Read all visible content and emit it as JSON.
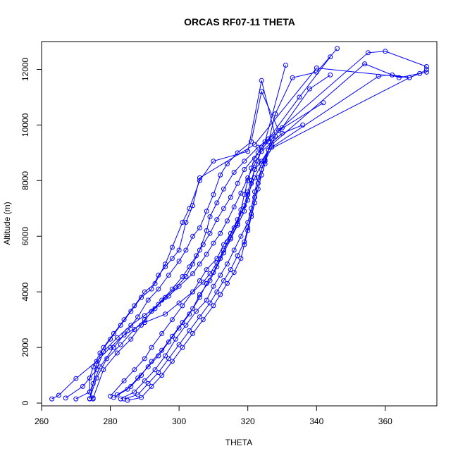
{
  "chart_data": {
    "type": "scatter",
    "title": "ORCAS RF07-11 THETA",
    "xlabel": "THETA",
    "ylabel": "Altitude (m)",
    "xlim": [
      260,
      375
    ],
    "ylim": [
      -100,
      13000
    ],
    "xticks": [
      260,
      280,
      300,
      320,
      340,
      360
    ],
    "yticks": [
      0,
      2000,
      4000,
      6000,
      8000,
      10000,
      12000
    ],
    "grid": false,
    "style": "points joined by lines, open circles",
    "color": "#0000ff",
    "series": [
      {
        "points": [
          [
            263,
            150
          ],
          [
            265,
            280
          ],
          [
            270,
            880
          ],
          [
            276,
            1500
          ],
          [
            280,
            2000
          ],
          [
            284,
            2450
          ],
          [
            290,
            2900
          ],
          [
            296,
            3200
          ],
          [
            300,
            3600
          ],
          [
            304,
            4000
          ],
          [
            307,
            4350
          ],
          [
            309,
            4650
          ],
          [
            311,
            5050
          ],
          [
            313,
            5500
          ],
          [
            315,
            5950
          ],
          [
            317,
            6450
          ],
          [
            318,
            6950
          ],
          [
            319,
            7500
          ],
          [
            320,
            8000
          ],
          [
            321,
            8450
          ],
          [
            322,
            8800
          ],
          [
            325,
            9400
          ],
          [
            331,
            12150
          ]
        ]
      },
      {
        "points": [
          [
            267,
            180
          ],
          [
            272,
            600
          ],
          [
            276,
            1200
          ],
          [
            278,
            1850
          ],
          [
            282,
            2350
          ],
          [
            286,
            2800
          ],
          [
            290,
            3150
          ],
          [
            294,
            3550
          ],
          [
            297,
            3850
          ],
          [
            300,
            4200
          ],
          [
            304,
            4650
          ],
          [
            306,
            5000
          ],
          [
            308,
            5350
          ],
          [
            310,
            5750
          ],
          [
            312,
            6100
          ],
          [
            314,
            6550
          ],
          [
            316,
            7050
          ],
          [
            318,
            7550
          ],
          [
            320,
            8100
          ],
          [
            322,
            8600
          ],
          [
            324,
            9050
          ],
          [
            330,
            9700
          ],
          [
            336,
            10000
          ]
        ]
      },
      {
        "points": [
          [
            270,
            150
          ],
          [
            274,
            400
          ],
          [
            277,
            1300
          ],
          [
            281,
            2000
          ],
          [
            285,
            2600
          ],
          [
            288,
            3100
          ],
          [
            291,
            3700
          ],
          [
            294,
            4100
          ],
          [
            297,
            4600
          ],
          [
            300,
            5100
          ],
          [
            302,
            5500
          ],
          [
            304,
            6000
          ],
          [
            306,
            6300
          ],
          [
            308,
            6900
          ],
          [
            310,
            7500
          ],
          [
            312,
            8200
          ],
          [
            314,
            8600
          ],
          [
            317,
            9000
          ],
          [
            321,
            9400
          ],
          [
            324,
            11200
          ],
          [
            329,
            9800
          ],
          [
            342,
            10800
          ]
        ]
      },
      {
        "points": [
          [
            274,
            160
          ],
          [
            276,
            900
          ],
          [
            279,
            1600
          ],
          [
            283,
            2100
          ],
          [
            287,
            2650
          ],
          [
            290,
            3000
          ],
          [
            293,
            3400
          ],
          [
            296,
            3800
          ],
          [
            299,
            4150
          ],
          [
            302,
            4550
          ],
          [
            304,
            5000
          ],
          [
            306,
            5500
          ],
          [
            308,
            6200
          ],
          [
            309,
            6700
          ],
          [
            311,
            7200
          ],
          [
            313,
            7700
          ],
          [
            316,
            8300
          ],
          [
            319,
            8700
          ],
          [
            323,
            9200
          ],
          [
            326,
            9500
          ],
          [
            335,
            11000
          ],
          [
            344,
            12450
          ]
        ]
      },
      {
        "points": [
          [
            275,
            180
          ],
          [
            278,
            1200
          ],
          [
            282,
            1800
          ],
          [
            286,
            2300
          ],
          [
            289,
            2800
          ],
          [
            292,
            3300
          ],
          [
            295,
            3700
          ],
          [
            298,
            4100
          ],
          [
            301,
            4550
          ],
          [
            303,
            4900
          ],
          [
            305,
            5300
          ],
          [
            307,
            5700
          ],
          [
            309,
            6100
          ],
          [
            311,
            6600
          ],
          [
            313,
            7000
          ],
          [
            315,
            7400
          ],
          [
            317,
            7900
          ],
          [
            319,
            8400
          ],
          [
            323,
            9000
          ],
          [
            326,
            9400
          ],
          [
            328,
            10400
          ],
          [
            333,
            11700
          ],
          [
            340,
            11900
          ],
          [
            346,
            12750
          ]
        ]
      },
      {
        "points": [
          [
            280,
            250
          ],
          [
            284,
            800
          ],
          [
            287,
            1200
          ],
          [
            290,
            1600
          ],
          [
            292,
            2000
          ],
          [
            295,
            2500
          ],
          [
            298,
            3000
          ],
          [
            301,
            3500
          ],
          [
            304,
            4000
          ],
          [
            306,
            4400
          ],
          [
            308,
            4800
          ],
          [
            311,
            5200
          ],
          [
            313,
            5700
          ],
          [
            315,
            6100
          ],
          [
            317,
            6600
          ],
          [
            319,
            7100
          ],
          [
            320,
            7600
          ],
          [
            321,
            8000
          ],
          [
            322,
            8400
          ],
          [
            323,
            8700
          ],
          [
            324,
            9200
          ],
          [
            326,
            9500
          ],
          [
            355,
            12600
          ],
          [
            360,
            12650
          ],
          [
            372,
            12100
          ]
        ]
      },
      {
        "points": [
          [
            281,
            200
          ],
          [
            285,
            500
          ],
          [
            288,
            900
          ],
          [
            291,
            1300
          ],
          [
            294,
            1700
          ],
          [
            297,
            2200
          ],
          [
            300,
            2700
          ],
          [
            303,
            3200
          ],
          [
            306,
            3800
          ],
          [
            308,
            4300
          ],
          [
            310,
            4700
          ],
          [
            312,
            5200
          ],
          [
            314,
            5800
          ],
          [
            316,
            6300
          ],
          [
            318,
            6800
          ],
          [
            320,
            7300
          ],
          [
            321,
            7900
          ],
          [
            322,
            8400
          ],
          [
            324,
            8700
          ],
          [
            327,
            9300
          ],
          [
            354,
            12200
          ],
          [
            364,
            11700
          ],
          [
            372,
            11900
          ]
        ]
      },
      {
        "points": [
          [
            282,
            300
          ],
          [
            286,
            600
          ],
          [
            289,
            1000
          ],
          [
            292,
            1500
          ],
          [
            295,
            1900
          ],
          [
            298,
            2400
          ],
          [
            301,
            2900
          ],
          [
            304,
            3400
          ],
          [
            306,
            3900
          ],
          [
            309,
            4400
          ],
          [
            311,
            4900
          ],
          [
            313,
            5400
          ],
          [
            315,
            5900
          ],
          [
            317,
            6400
          ],
          [
            319,
            6900
          ],
          [
            320,
            7500
          ],
          [
            322,
            8100
          ],
          [
            324,
            8600
          ],
          [
            326,
            9100
          ],
          [
            367,
            11700
          ],
          [
            370,
            11850
          ],
          [
            372,
            12000
          ]
        ]
      },
      {
        "points": [
          [
            283,
            150
          ],
          [
            287,
            400
          ],
          [
            290,
            800
          ],
          [
            293,
            1200
          ],
          [
            296,
            1700
          ],
          [
            299,
            2300
          ],
          [
            302,
            2800
          ],
          [
            305,
            3300
          ],
          [
            308,
            3700
          ],
          [
            310,
            4200
          ],
          [
            312,
            4600
          ],
          [
            314,
            5000
          ],
          [
            316,
            5500
          ],
          [
            318,
            6000
          ],
          [
            320,
            6500
          ],
          [
            321,
            7000
          ],
          [
            322,
            7600
          ],
          [
            323,
            8100
          ],
          [
            325,
            8700
          ],
          [
            327,
            9200
          ],
          [
            358,
            11750
          ],
          [
            362,
            11800
          ],
          [
            367,
            11700
          ],
          [
            340,
            12050
          ],
          [
            322,
            9300
          ],
          [
            306,
            8100
          ],
          [
            304,
            7100
          ],
          [
            302,
            6500
          ],
          [
            300,
            5500
          ],
          [
            298,
            5200
          ],
          [
            296,
            4900
          ],
          [
            294,
            4600
          ],
          [
            292,
            4100
          ],
          [
            289,
            3800
          ],
          [
            286,
            3300
          ],
          [
            283,
            2800
          ],
          [
            280,
            2300
          ],
          [
            277,
            1800
          ],
          [
            275,
            1300
          ],
          [
            274,
            900
          ],
          [
            274,
            400
          ],
          [
            275,
            150
          ]
        ]
      },
      {
        "points": [
          [
            284,
            150
          ],
          [
            288,
            300
          ],
          [
            291,
            700
          ],
          [
            294,
            1100
          ],
          [
            297,
            1600
          ],
          [
            300,
            2100
          ],
          [
            303,
            2600
          ],
          [
            306,
            3100
          ],
          [
            309,
            3600
          ],
          [
            311,
            4000
          ],
          [
            313,
            4400
          ],
          [
            315,
            4800
          ],
          [
            317,
            5300
          ],
          [
            319,
            5800
          ],
          [
            320,
            6300
          ],
          [
            321,
            6800
          ],
          [
            322,
            7400
          ],
          [
            323,
            7900
          ],
          [
            324,
            8400
          ],
          [
            325,
            8750
          ],
          [
            327,
            9500
          ],
          [
            330,
            9900
          ],
          [
            338,
            11300
          ],
          [
            344,
            11800
          ]
        ]
      },
      {
        "points": [
          [
            285,
            100
          ],
          [
            289,
            200
          ],
          [
            292,
            600
          ],
          [
            295,
            1000
          ],
          [
            298,
            1500
          ],
          [
            301,
            2000
          ],
          [
            304,
            2500
          ],
          [
            307,
            3000
          ],
          [
            310,
            3500
          ],
          [
            312,
            3900
          ],
          [
            314,
            4300
          ],
          [
            316,
            4700
          ],
          [
            318,
            5200
          ],
          [
            319,
            5700
          ],
          [
            320,
            6200
          ],
          [
            321,
            6700
          ],
          [
            322,
            7200
          ],
          [
            323,
            7700
          ],
          [
            324,
            8200
          ],
          [
            325,
            8600
          ],
          [
            326,
            9100
          ],
          [
            328,
            9600
          ],
          [
            324,
            11600
          ],
          [
            320,
            9050
          ],
          [
            310,
            8700
          ],
          [
            306,
            8000
          ],
          [
            303,
            7000
          ],
          [
            301,
            6500
          ],
          [
            298,
            5600
          ],
          [
            296,
            5000
          ],
          [
            293,
            4300
          ],
          [
            290,
            4000
          ],
          [
            287,
            3500
          ],
          [
            284,
            3000
          ],
          [
            281,
            2500
          ],
          [
            278,
            2000
          ],
          [
            276,
            1400
          ],
          [
            275,
            700
          ],
          [
            274,
            150
          ]
        ]
      }
    ]
  }
}
